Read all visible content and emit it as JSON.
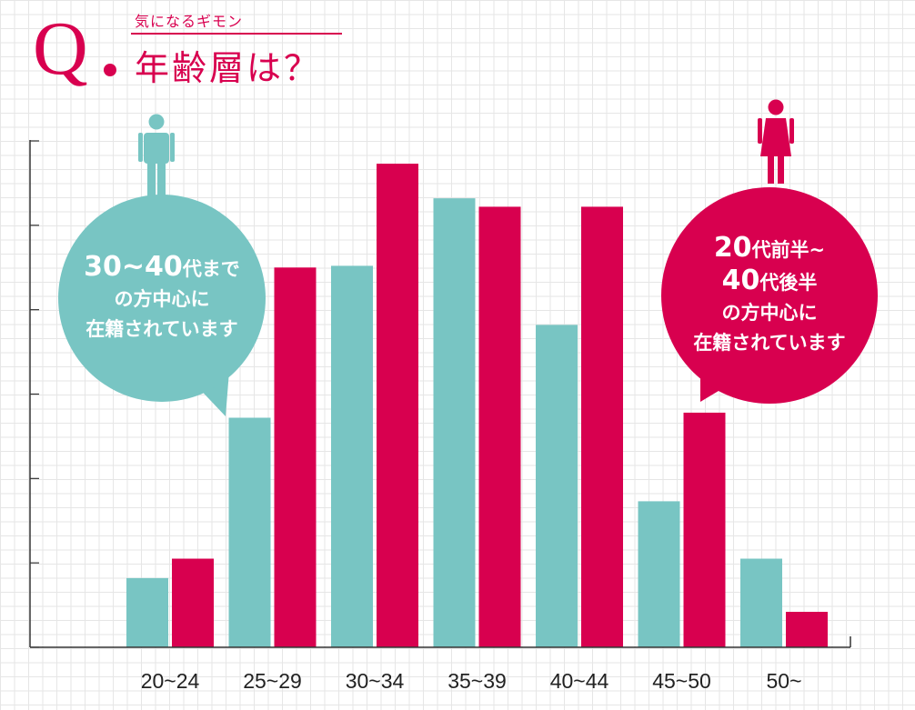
{
  "header": {
    "q_letter": "Q",
    "kicker": "気になるギモン",
    "title": "年齢層は？"
  },
  "colors": {
    "male": "#78c5c3",
    "female": "#d8004f",
    "axis": "#333333"
  },
  "icons": {
    "male": "male-person-icon",
    "female": "female-person-icon"
  },
  "bubbles": {
    "male": {
      "line1_num": "30~40",
      "line1_text": "代まで",
      "line2": "の方中心に",
      "line3": "在籍されています"
    },
    "female": {
      "line1_num": "20",
      "line1_text": "代前半~",
      "line2_num": "40",
      "line2_text": "代後半",
      "line3": "の方中心に",
      "line4": "在籍されています"
    }
  },
  "chart_data": {
    "type": "bar",
    "categories": [
      "20~24",
      "25~29",
      "30~34",
      "35~39",
      "40~44",
      "45~50",
      "50~"
    ],
    "series": [
      {
        "values": [
          8.2,
          27.2,
          45.2,
          53.2,
          38.2,
          17.3,
          10.5
        ]
      },
      {
        "values": [
          10.5,
          45.0,
          57.3,
          52.2,
          52.2,
          27.8,
          4.2
        ]
      }
    ],
    "ylim": [
      0,
      60
    ],
    "yticks": [
      0,
      10,
      20,
      30,
      40,
      50,
      60
    ],
    "y_tick_labels_shown": false,
    "grid": true,
    "xlabel": "",
    "ylabel": ""
  }
}
